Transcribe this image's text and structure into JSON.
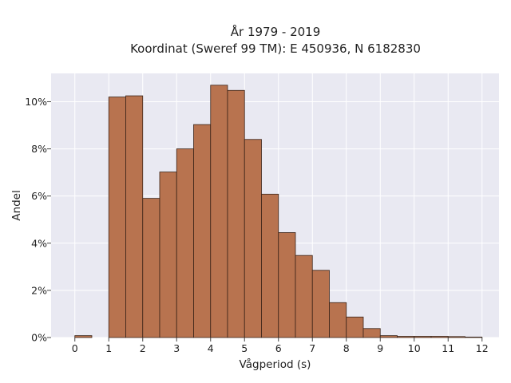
{
  "chart_data": {
    "type": "bar",
    "title_lines": [
      "År 1979 - 2019",
      "Koordinat (Sweref 99 TM): E 450936, N 6182830"
    ],
    "xlabel": "Vågperiod (s)",
    "ylabel": "Andel",
    "xlim": [
      -0.7,
      12.5
    ],
    "ylim": [
      0,
      11.2
    ],
    "x_ticks": [
      0,
      1,
      2,
      3,
      4,
      5,
      6,
      7,
      8,
      9,
      10,
      11,
      12
    ],
    "y_ticks": [
      0,
      2,
      4,
      6,
      8,
      10
    ],
    "y_tick_labels": [
      "0%",
      "2%",
      "4%",
      "6%",
      "8%",
      "10%"
    ],
    "grid": true,
    "bar_color": "#b8734f",
    "bar_edge_color": "#3a2418",
    "background_color": "#e9e9f2",
    "bins": [
      {
        "x0": 0.0,
        "x1": 0.5,
        "value": 0.08
      },
      {
        "x0": 1.0,
        "x1": 1.5,
        "value": 10.2
      },
      {
        "x0": 1.5,
        "x1": 2.0,
        "value": 10.25
      },
      {
        "x0": 2.0,
        "x1": 2.5,
        "value": 5.9
      },
      {
        "x0": 2.5,
        "x1": 3.0,
        "value": 7.02
      },
      {
        "x0": 3.0,
        "x1": 3.5,
        "value": 8.0
      },
      {
        "x0": 3.5,
        "x1": 4.0,
        "value": 9.03
      },
      {
        "x0": 4.0,
        "x1": 4.5,
        "value": 10.7
      },
      {
        "x0": 4.5,
        "x1": 5.0,
        "value": 10.48
      },
      {
        "x0": 5.0,
        "x1": 5.5,
        "value": 8.4
      },
      {
        "x0": 5.5,
        "x1": 6.0,
        "value": 6.08
      },
      {
        "x0": 6.0,
        "x1": 6.5,
        "value": 4.45
      },
      {
        "x0": 6.5,
        "x1": 7.0,
        "value": 3.48
      },
      {
        "x0": 7.0,
        "x1": 7.5,
        "value": 2.85
      },
      {
        "x0": 7.5,
        "x1": 8.0,
        "value": 1.48
      },
      {
        "x0": 8.0,
        "x1": 8.5,
        "value": 0.87
      },
      {
        "x0": 8.5,
        "x1": 9.0,
        "value": 0.38
      },
      {
        "x0": 9.0,
        "x1": 9.5,
        "value": 0.08
      },
      {
        "x0": 9.5,
        "x1": 10.0,
        "value": 0.05
      },
      {
        "x0": 10.0,
        "x1": 10.5,
        "value": 0.05
      },
      {
        "x0": 10.5,
        "x1": 11.0,
        "value": 0.05
      },
      {
        "x0": 11.0,
        "x1": 11.5,
        "value": 0.04
      },
      {
        "x0": 11.5,
        "x1": 12.0,
        "value": 0.02
      }
    ]
  }
}
